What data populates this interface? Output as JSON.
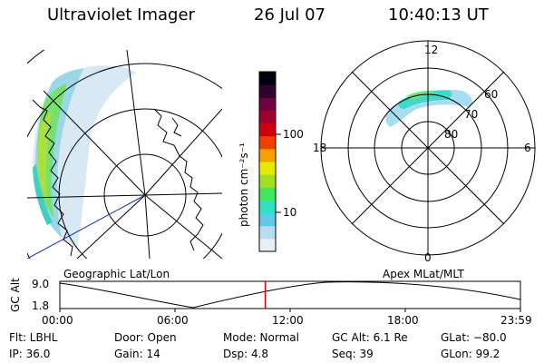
{
  "header": {
    "instrument": "Ultraviolet Imager",
    "date": "26 Jul 07",
    "time": "10:40:13 UT"
  },
  "geo_panel": {
    "label": "Geographic Lat/Lon"
  },
  "polar_panel": {
    "label": "Apex MLat/MLT",
    "mlt_labels": {
      "top": "12",
      "left": "18",
      "right": "6",
      "bottom": "0"
    },
    "lat_labels": [
      "60",
      "70",
      "80"
    ]
  },
  "colorbar": {
    "unit_label": "photon cm⁻²s⁻¹",
    "ticks": [
      "100",
      "10"
    ],
    "colors": [
      "#e8eef6",
      "#b8dcf0",
      "#60c8e8",
      "#30e0c0",
      "#40e860",
      "#a0e020",
      "#e8e800",
      "#f8a000",
      "#f04000",
      "#d00010",
      "#a00030",
      "#700040",
      "#300030",
      "#000010"
    ]
  },
  "altitude_track": {
    "axis_label": "GC Alt",
    "ytick_top": "9.0",
    "ytick_bottom": "1.8",
    "xticks": [
      "00:00",
      "06:00",
      "12:00",
      "18:00",
      "23:59"
    ],
    "current_time_fraction": 0.446
  },
  "info": {
    "filter": "Flt: LBHL",
    "ip": "IP: 36.0",
    "door": "Door: Open",
    "gain": "Gain: 14",
    "mode": "Mode: Normal",
    "dsp": "Dsp:     4.8",
    "gc_alt": "GC Alt: 6.1 Re",
    "seq": "Seq: 39",
    "glat": "GLat: −80.0",
    "glon": "GLon:  99.2"
  }
}
